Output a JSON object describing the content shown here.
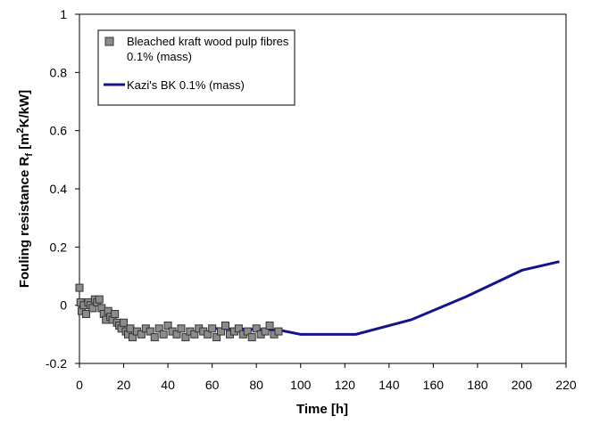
{
  "chart_data": {
    "type": "scatter",
    "x_label": "Time [h]",
    "y_label": [
      "Fouling resistance R",
      "f",
      " [m",
      "2",
      "K/kW]"
    ],
    "xlim": [
      0,
      220
    ],
    "xticks": [
      0,
      20,
      40,
      60,
      80,
      100,
      120,
      140,
      160,
      180,
      200,
      220
    ],
    "ylim": [
      -0.2,
      1
    ],
    "yticks": [
      -0.2,
      0,
      0.2,
      0.4,
      0.6,
      0.8,
      1
    ],
    "grid": false,
    "legend": "upper left",
    "series": [
      {
        "name": "Bleached kraft wood pulp fibres 0.1% (mass)",
        "type": "scatter",
        "color": "#8c8c8c",
        "x": [
          0,
          0.5,
          1,
          2,
          3,
          4,
          5,
          6,
          7,
          8,
          9,
          10,
          11,
          12,
          13,
          14,
          15,
          16,
          17,
          18,
          19,
          20,
          21,
          22,
          23,
          24,
          26,
          28,
          30,
          32,
          34,
          36,
          38,
          40,
          42,
          44,
          46,
          48,
          50,
          52,
          54,
          56,
          58,
          60,
          62,
          64,
          66,
          68,
          70,
          72,
          74,
          76,
          78,
          80,
          82,
          84,
          86,
          88,
          90
        ],
        "values": [
          0.06,
          0.01,
          -0.02,
          0,
          -0.03,
          0.01,
          0,
          -0.01,
          0.02,
          0.01,
          0.02,
          -0.01,
          -0.03,
          -0.05,
          -0.02,
          -0.04,
          -0.05,
          -0.03,
          -0.06,
          -0.07,
          -0.08,
          -0.06,
          -0.09,
          -0.1,
          -0.08,
          -0.11,
          -0.09,
          -0.1,
          -0.08,
          -0.09,
          -0.11,
          -0.08,
          -0.1,
          -0.07,
          -0.09,
          -0.1,
          -0.08,
          -0.11,
          -0.09,
          -0.1,
          -0.08,
          -0.09,
          -0.1,
          -0.08,
          -0.11,
          -0.09,
          -0.07,
          -0.1,
          -0.09,
          -0.08,
          -0.1,
          -0.09,
          -0.11,
          -0.08,
          -0.1,
          -0.09,
          -0.07,
          -0.1,
          -0.09
        ]
      },
      {
        "name": "Kazi's BK 0.1% (mass)",
        "type": "line",
        "color": "#14148c",
        "x": [
          60,
          90,
          100,
          125,
          150,
          175,
          200,
          217
        ],
        "values": [
          -0.08,
          -0.085,
          -0.1,
          -0.1,
          -0.05,
          0.03,
          0.12,
          0.15
        ]
      }
    ]
  }
}
